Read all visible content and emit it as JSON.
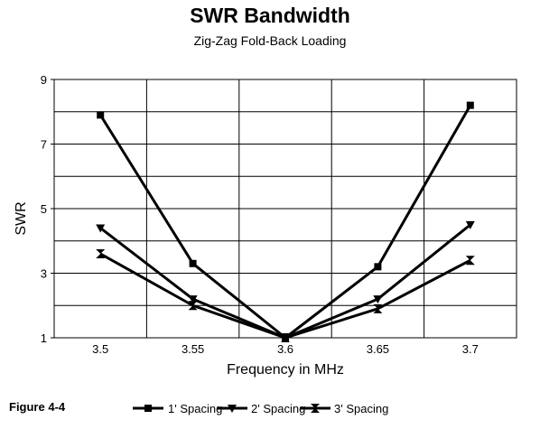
{
  "figure_label": "Figure 4-4",
  "colors": {
    "series": "#000000",
    "grid": "#000000",
    "background": "#ffffff"
  },
  "chart_data": {
    "type": "line",
    "title": "SWR Bandwidth",
    "subtitle": "Zig-Zag Fold-Back Loading",
    "xlabel": "Frequency in MHz",
    "ylabel": "SWR",
    "x": [
      3.5,
      3.55,
      3.6,
      3.65,
      3.7
    ],
    "x_tick_labels": [
      "3.5",
      "3.55",
      "3.6",
      "3.65",
      "3.7"
    ],
    "y_tick_labels": [
      "1",
      "3",
      "5",
      "7",
      "9"
    ],
    "ylim": [
      1,
      9
    ],
    "y_grid_step": 1,
    "grid": true,
    "legend_position": "bottom",
    "series": [
      {
        "name": "1' Spacing",
        "marker": "square",
        "values": [
          7.9,
          3.3,
          1.0,
          3.2,
          8.2
        ]
      },
      {
        "name": "2' Spacing",
        "marker": "triangle-down",
        "values": [
          4.4,
          2.2,
          1.0,
          2.2,
          4.5
        ]
      },
      {
        "name": "3' Spacing",
        "marker": "bowtie",
        "values": [
          3.6,
          2.0,
          1.0,
          1.9,
          3.4
        ]
      }
    ]
  }
}
